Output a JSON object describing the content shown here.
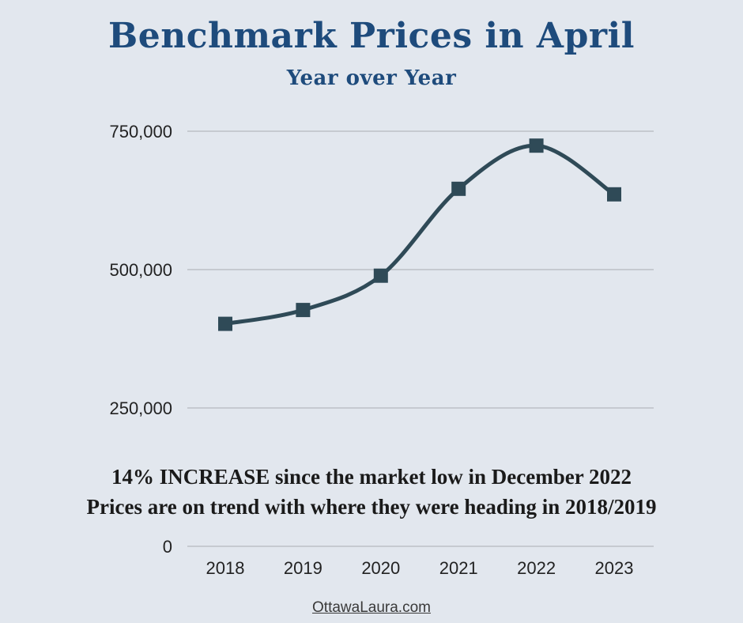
{
  "chart_data": {
    "type": "line",
    "title": "Benchmark Prices in April",
    "subtitle": "Year over Year",
    "categories": [
      "2018",
      "2019",
      "2020",
      "2021",
      "2022",
      "2023"
    ],
    "series": [
      {
        "values": [
          402000,
          427000,
          489000,
          646000,
          724000,
          636000
        ]
      }
    ],
    "ylim": [
      0,
      750000
    ],
    "yticks": [
      0,
      250000,
      500000,
      750000
    ],
    "ytick_labels": [
      "0",
      "250,000",
      "500,000",
      "750,000"
    ],
    "grid": true,
    "line_color": "#2f4a57",
    "marker": "square",
    "smooth": true,
    "annotations": [
      "14%  INCREASE since the market low in December 2022",
      "Prices are on trend with where they were heading in 2018/2019"
    ]
  },
  "footer": {
    "link_text": "OttawaLaura.com"
  }
}
